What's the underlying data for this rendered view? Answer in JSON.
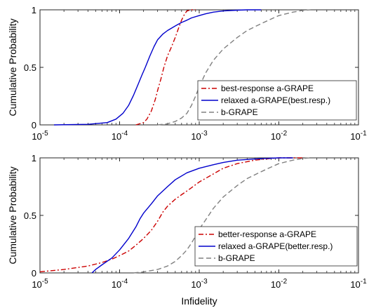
{
  "chart_data": [
    {
      "type": "line",
      "xscale": "log",
      "xlim": [
        1e-05,
        0.1
      ],
      "ylim": [
        0,
        1
      ],
      "xticks": [
        1e-05,
        0.0001,
        0.001,
        0.01,
        0.1
      ],
      "xtick_labels": [
        {
          "base": "10",
          "exp": "-5"
        },
        {
          "base": "10",
          "exp": "-4"
        },
        {
          "base": "10",
          "exp": "-3"
        },
        {
          "base": "10",
          "exp": "-2"
        },
        {
          "base": "10",
          "exp": "-1"
        }
      ],
      "yticks": [
        0,
        0.5,
        1
      ],
      "ytick_labels": [
        "0",
        "0.5",
        "1"
      ],
      "xlabel": "",
      "ylabel": "Cumulative Probability",
      "grid": false,
      "legend": {
        "position": "bottom-right"
      },
      "series": [
        {
          "name": "best-response a-GRAPE",
          "color": "#cc0000",
          "style": "dashdot",
          "x": [
            0.00016,
            0.0002,
            0.00022,
            0.00025,
            0.00028,
            0.0003,
            0.00033,
            0.00036,
            0.0004,
            0.00045,
            0.0005,
            0.00055,
            0.0006,
            0.00065,
            0.0007,
            0.0008,
            0.0009
          ],
          "y": [
            0,
            0.02,
            0.05,
            0.12,
            0.22,
            0.3,
            0.4,
            0.5,
            0.6,
            0.68,
            0.76,
            0.84,
            0.91,
            0.96,
            0.99,
            1.0,
            1.0
          ]
        },
        {
          "name": "relaxed a-GRAPE(best.resp.)",
          "color": "#0000cc",
          "style": "solid",
          "x": [
            1.5e-05,
            4e-05,
            7e-05,
            9e-05,
            0.00011,
            0.00013,
            0.00015,
            0.00017,
            0.00019,
            0.00021,
            0.00024,
            0.00027,
            0.0003,
            0.00035,
            0.0004,
            0.0005,
            0.0006,
            0.0007,
            0.0008,
            0.001,
            0.0012,
            0.0015,
            0.002,
            0.003,
            0.004,
            0.006
          ],
          "y": [
            0,
            0.005,
            0.02,
            0.05,
            0.1,
            0.17,
            0.26,
            0.35,
            0.43,
            0.5,
            0.6,
            0.68,
            0.74,
            0.79,
            0.82,
            0.86,
            0.89,
            0.91,
            0.93,
            0.95,
            0.965,
            0.98,
            0.99,
            0.997,
            1.0,
            1.0
          ]
        },
        {
          "name": "b-GRAPE",
          "color": "#808080",
          "style": "dashed",
          "x": [
            0.0003,
            0.0004,
            0.0005,
            0.0006,
            0.0007,
            0.0008,
            0.0009,
            0.001,
            0.0012,
            0.0015,
            0.002,
            0.003,
            0.004,
            0.006,
            0.008,
            0.01,
            0.015,
            0.02,
            0.025
          ],
          "y": [
            0,
            0.01,
            0.03,
            0.06,
            0.1,
            0.17,
            0.25,
            0.33,
            0.45,
            0.56,
            0.66,
            0.76,
            0.82,
            0.88,
            0.92,
            0.95,
            0.98,
            0.995,
            1.0
          ]
        }
      ]
    },
    {
      "type": "line",
      "xscale": "log",
      "xlim": [
        1e-05,
        0.1
      ],
      "ylim": [
        0,
        1
      ],
      "xticks": [
        1e-05,
        0.0001,
        0.001,
        0.01,
        0.1
      ],
      "xtick_labels": [
        {
          "base": "10",
          "exp": "-5"
        },
        {
          "base": "10",
          "exp": "-4"
        },
        {
          "base": "10",
          "exp": "-3"
        },
        {
          "base": "10",
          "exp": "-2"
        },
        {
          "base": "10",
          "exp": "-1"
        }
      ],
      "yticks": [
        0,
        0.5,
        1
      ],
      "ytick_labels": [
        "0",
        "0.5",
        "1"
      ],
      "xlabel": "Infidelity",
      "ylabel": "Cumulative Probability",
      "grid": false,
      "legend": {
        "position": "bottom-right"
      },
      "series": [
        {
          "name": "better-response a-GRAPE",
          "color": "#cc0000",
          "style": "dashdot",
          "x": [
            1e-05,
            2e-05,
            4e-05,
            6e-05,
            8e-05,
            0.0001,
            0.00013,
            0.00016,
            0.0002,
            0.00025,
            0.0003,
            0.00035,
            0.0004,
            0.0005,
            0.0006,
            0.0008,
            0.001,
            0.0015,
            0.002,
            0.003,
            0.005,
            0.008,
            0.01,
            0.02
          ],
          "y": [
            0.01,
            0.03,
            0.06,
            0.09,
            0.12,
            0.15,
            0.19,
            0.24,
            0.3,
            0.37,
            0.45,
            0.53,
            0.58,
            0.64,
            0.68,
            0.74,
            0.79,
            0.86,
            0.91,
            0.95,
            0.98,
            0.995,
            1.0,
            1.0
          ]
        },
        {
          "name": "relaxed a-GRAPE(better.resp.)",
          "color": "#0000cc",
          "style": "solid",
          "x": [
            4.5e-05,
            5e-05,
            6e-05,
            8e-05,
            0.0001,
            0.00013,
            0.00016,
            0.00018,
            0.0002,
            0.00025,
            0.0003,
            0.0004,
            0.0005,
            0.0007,
            0.001,
            0.0015,
            0.002,
            0.003,
            0.005,
            0.008,
            0.01,
            0.015
          ],
          "y": [
            0,
            0.03,
            0.07,
            0.13,
            0.2,
            0.3,
            0.4,
            0.47,
            0.52,
            0.6,
            0.67,
            0.75,
            0.81,
            0.87,
            0.91,
            0.94,
            0.96,
            0.98,
            0.99,
            0.997,
            1.0,
            1.0
          ]
        },
        {
          "name": "b-GRAPE",
          "color": "#808080",
          "style": "dashed",
          "x": [
            0.00015,
            0.0002,
            0.0003,
            0.0004,
            0.0005,
            0.0006,
            0.0007,
            0.0008,
            0.0009,
            0.001,
            0.0012,
            0.0015,
            0.002,
            0.003,
            0.004,
            0.006,
            0.008,
            0.01,
            0.015,
            0.02,
            0.025
          ],
          "y": [
            0,
            0.01,
            0.03,
            0.06,
            0.1,
            0.15,
            0.2,
            0.26,
            0.32,
            0.38,
            0.46,
            0.56,
            0.66,
            0.76,
            0.82,
            0.88,
            0.92,
            0.95,
            0.98,
            0.995,
            1.0
          ]
        }
      ]
    }
  ]
}
